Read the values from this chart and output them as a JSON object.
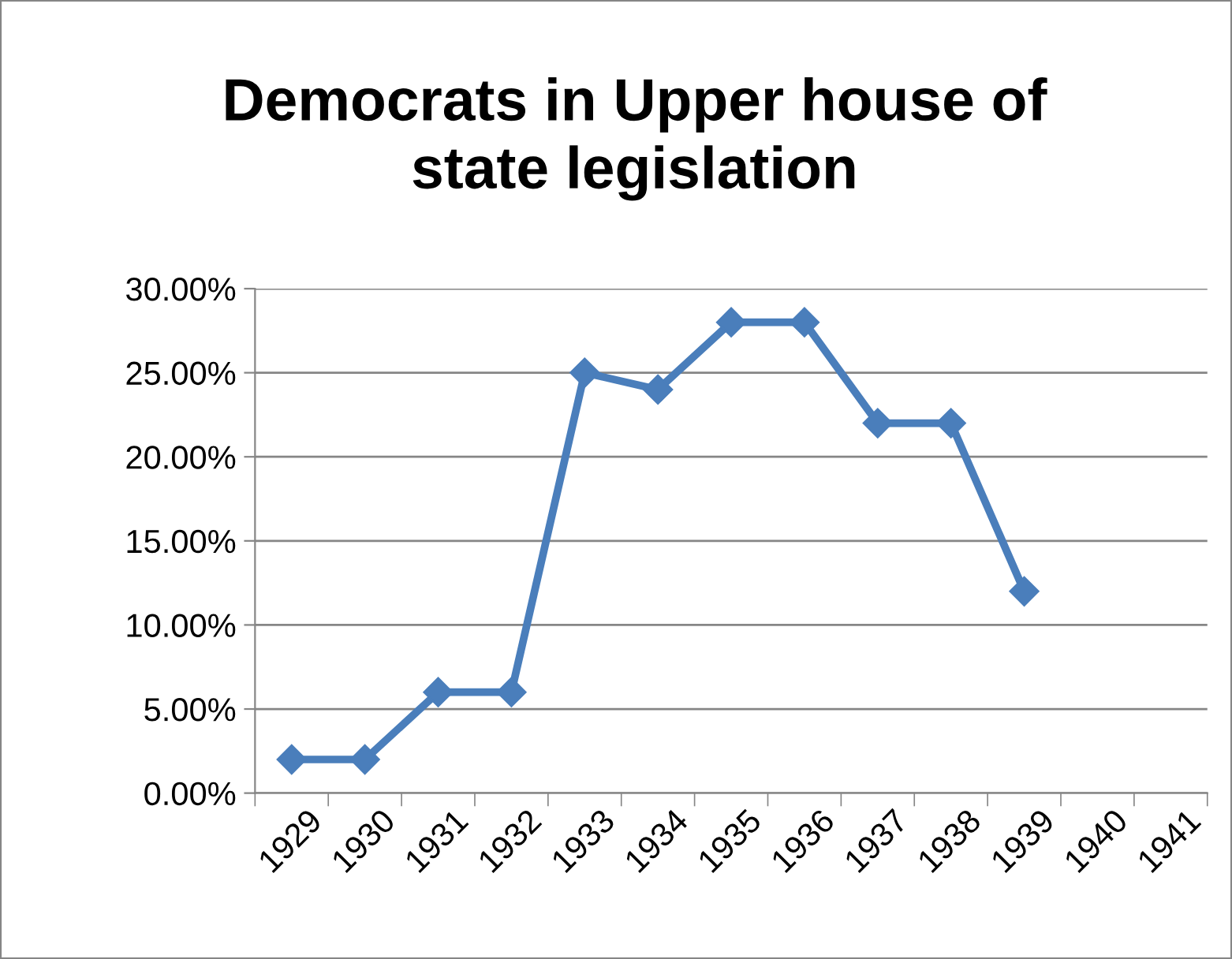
{
  "chart_data": {
    "type": "line",
    "title": "Democrats in Upper house of\nstate legislation",
    "categories": [
      "1929",
      "1930",
      "1931",
      "1932",
      "1933",
      "1934",
      "1935",
      "1936",
      "1937",
      "1938",
      "1939",
      "1940",
      "1941"
    ],
    "series": [
      {
        "color": "#4a7ebb",
        "values": [
          2,
          2,
          6,
          6,
          25,
          24,
          28,
          28,
          22,
          22,
          12,
          null,
          null
        ]
      }
    ],
    "ylim": [
      0,
      30
    ],
    "yticks": [
      {
        "value": 0,
        "label": "0.00%"
      },
      {
        "value": 5,
        "label": "5.00%"
      },
      {
        "value": 10,
        "label": "10.00%"
      },
      {
        "value": 15,
        "label": "15.00%"
      },
      {
        "value": 20,
        "label": "20.00%"
      },
      {
        "value": 25,
        "label": "25.00%"
      },
      {
        "value": 30,
        "label": "30.00%"
      }
    ],
    "grid": "y",
    "marker": "diamond",
    "line_style": "solid"
  }
}
